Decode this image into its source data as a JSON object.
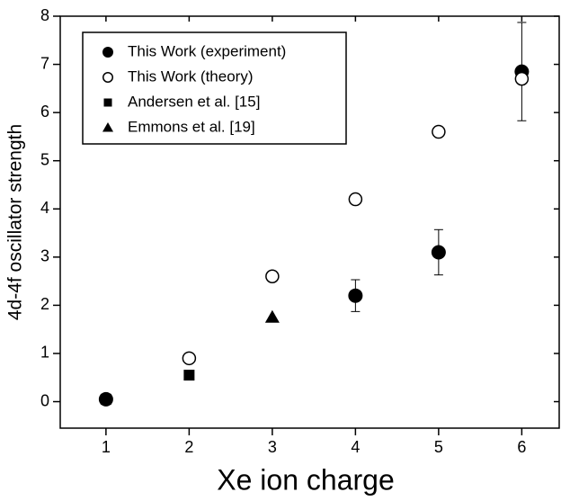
{
  "chart_data": {
    "type": "scatter",
    "x_label": "Xe ion charge",
    "y_label": "4d-4f oscillator strength",
    "xlim": [
      0.45,
      6.45
    ],
    "ylim": [
      -0.55,
      8
    ],
    "xticks": [
      1,
      2,
      3,
      4,
      5,
      6
    ],
    "yticks": [
      0,
      1,
      2,
      3,
      4,
      5,
      6,
      7,
      8
    ],
    "legend": "upper left",
    "series": [
      {
        "name": "This Work (experiment)",
        "color": "#000000",
        "marker": "filled-circle",
        "x": [
          1,
          4,
          5,
          6
        ],
        "values": [
          0.05,
          2.2,
          3.1,
          6.85
        ],
        "errors": [
          null,
          0.33,
          0.47,
          1.02
        ]
      },
      {
        "name": "This Work (theory)",
        "color": "#000000",
        "marker": "open-circle",
        "x": [
          2,
          3,
          4,
          5,
          6
        ],
        "values": [
          0.9,
          2.6,
          4.2,
          5.6,
          6.7
        ]
      },
      {
        "name": "Andersen et al. [15]",
        "color": "#000000",
        "marker": "square",
        "x": [
          1,
          2
        ],
        "values": [
          0.05,
          0.55
        ]
      },
      {
        "name": "Emmons et al. [19]",
        "color": "#000000",
        "marker": "triangle",
        "x": [
          3
        ],
        "values": [
          1.75
        ]
      }
    ]
  }
}
